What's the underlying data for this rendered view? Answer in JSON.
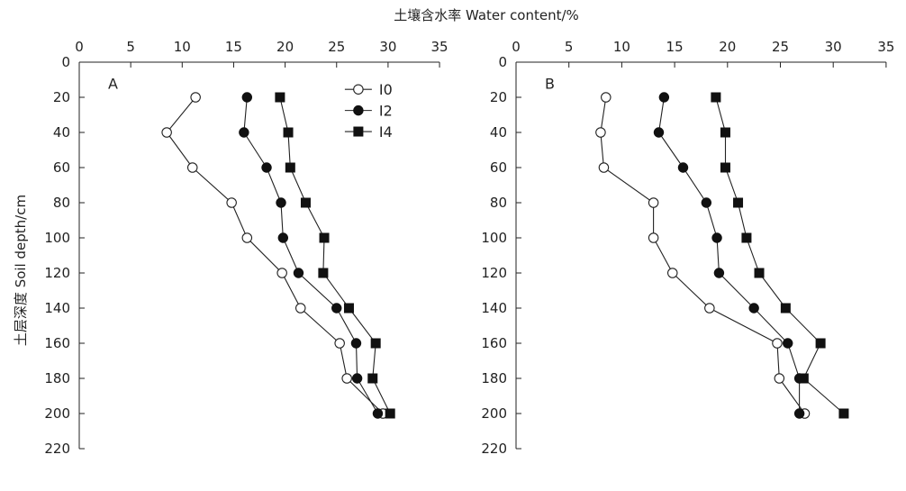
{
  "figure": {
    "top_label": "土壤含水率 Water content/%",
    "y_label": "土层深度 Soil depth/cm"
  },
  "chart_data": [
    {
      "type": "line",
      "panel_label": "A",
      "x_axis": {
        "label": "土壤含水率 Water content/%",
        "position": "top",
        "range": [
          0,
          35
        ],
        "ticks": [
          0,
          5,
          10,
          15,
          20,
          25,
          30,
          35
        ]
      },
      "y_axis": {
        "label": "土层深度 Soil depth/cm",
        "range": [
          0,
          220
        ],
        "inverted": true,
        "ticks": [
          0,
          20,
          40,
          60,
          80,
          100,
          120,
          140,
          160,
          180,
          200,
          220
        ]
      },
      "legend": {
        "placement": "top-right"
      },
      "grid": false,
      "depths": [
        20,
        40,
        60,
        80,
        100,
        120,
        140,
        160,
        180,
        200
      ],
      "series": [
        {
          "name": "I0",
          "marker": "open-circle",
          "values": [
            11.3,
            8.5,
            11.0,
            14.8,
            16.3,
            19.7,
            21.5,
            25.3,
            26.0,
            29.5
          ]
        },
        {
          "name": "I2",
          "marker": "filled-circle",
          "values": [
            16.3,
            16.0,
            18.2,
            19.6,
            19.8,
            21.3,
            25.0,
            26.9,
            27.0,
            29.0
          ]
        },
        {
          "name": "I4",
          "marker": "filled-square",
          "values": [
            19.5,
            20.3,
            20.5,
            22.0,
            23.8,
            23.7,
            26.2,
            28.8,
            28.5,
            30.2
          ]
        }
      ]
    },
    {
      "type": "line",
      "panel_label": "B",
      "x_axis": {
        "label": "土壤含水率 Water content/%",
        "position": "top",
        "range": [
          0,
          35
        ],
        "ticks": [
          0,
          5,
          10,
          15,
          20,
          25,
          30,
          35
        ]
      },
      "y_axis": {
        "label": "土层深度 Soil depth/cm",
        "range": [
          0,
          220
        ],
        "inverted": true,
        "ticks": [
          0,
          20,
          40,
          60,
          80,
          100,
          120,
          140,
          160,
          180,
          200,
          220
        ]
      },
      "legend": null,
      "grid": false,
      "depths": [
        20,
        40,
        60,
        80,
        100,
        120,
        140,
        160,
        180,
        200
      ],
      "series": [
        {
          "name": "I0",
          "marker": "open-circle",
          "values": [
            8.5,
            8.0,
            8.3,
            13.0,
            13.0,
            14.8,
            18.3,
            24.7,
            24.9,
            27.3
          ]
        },
        {
          "name": "I2",
          "marker": "filled-circle",
          "values": [
            14.0,
            13.5,
            15.8,
            18.0,
            19.0,
            19.2,
            22.5,
            25.7,
            26.8,
            26.8
          ]
        },
        {
          "name": "I4",
          "marker": "filled-square",
          "values": [
            18.9,
            19.8,
            19.8,
            21.0,
            21.8,
            23.0,
            25.5,
            28.8,
            27.2,
            31.0
          ]
        }
      ]
    }
  ]
}
